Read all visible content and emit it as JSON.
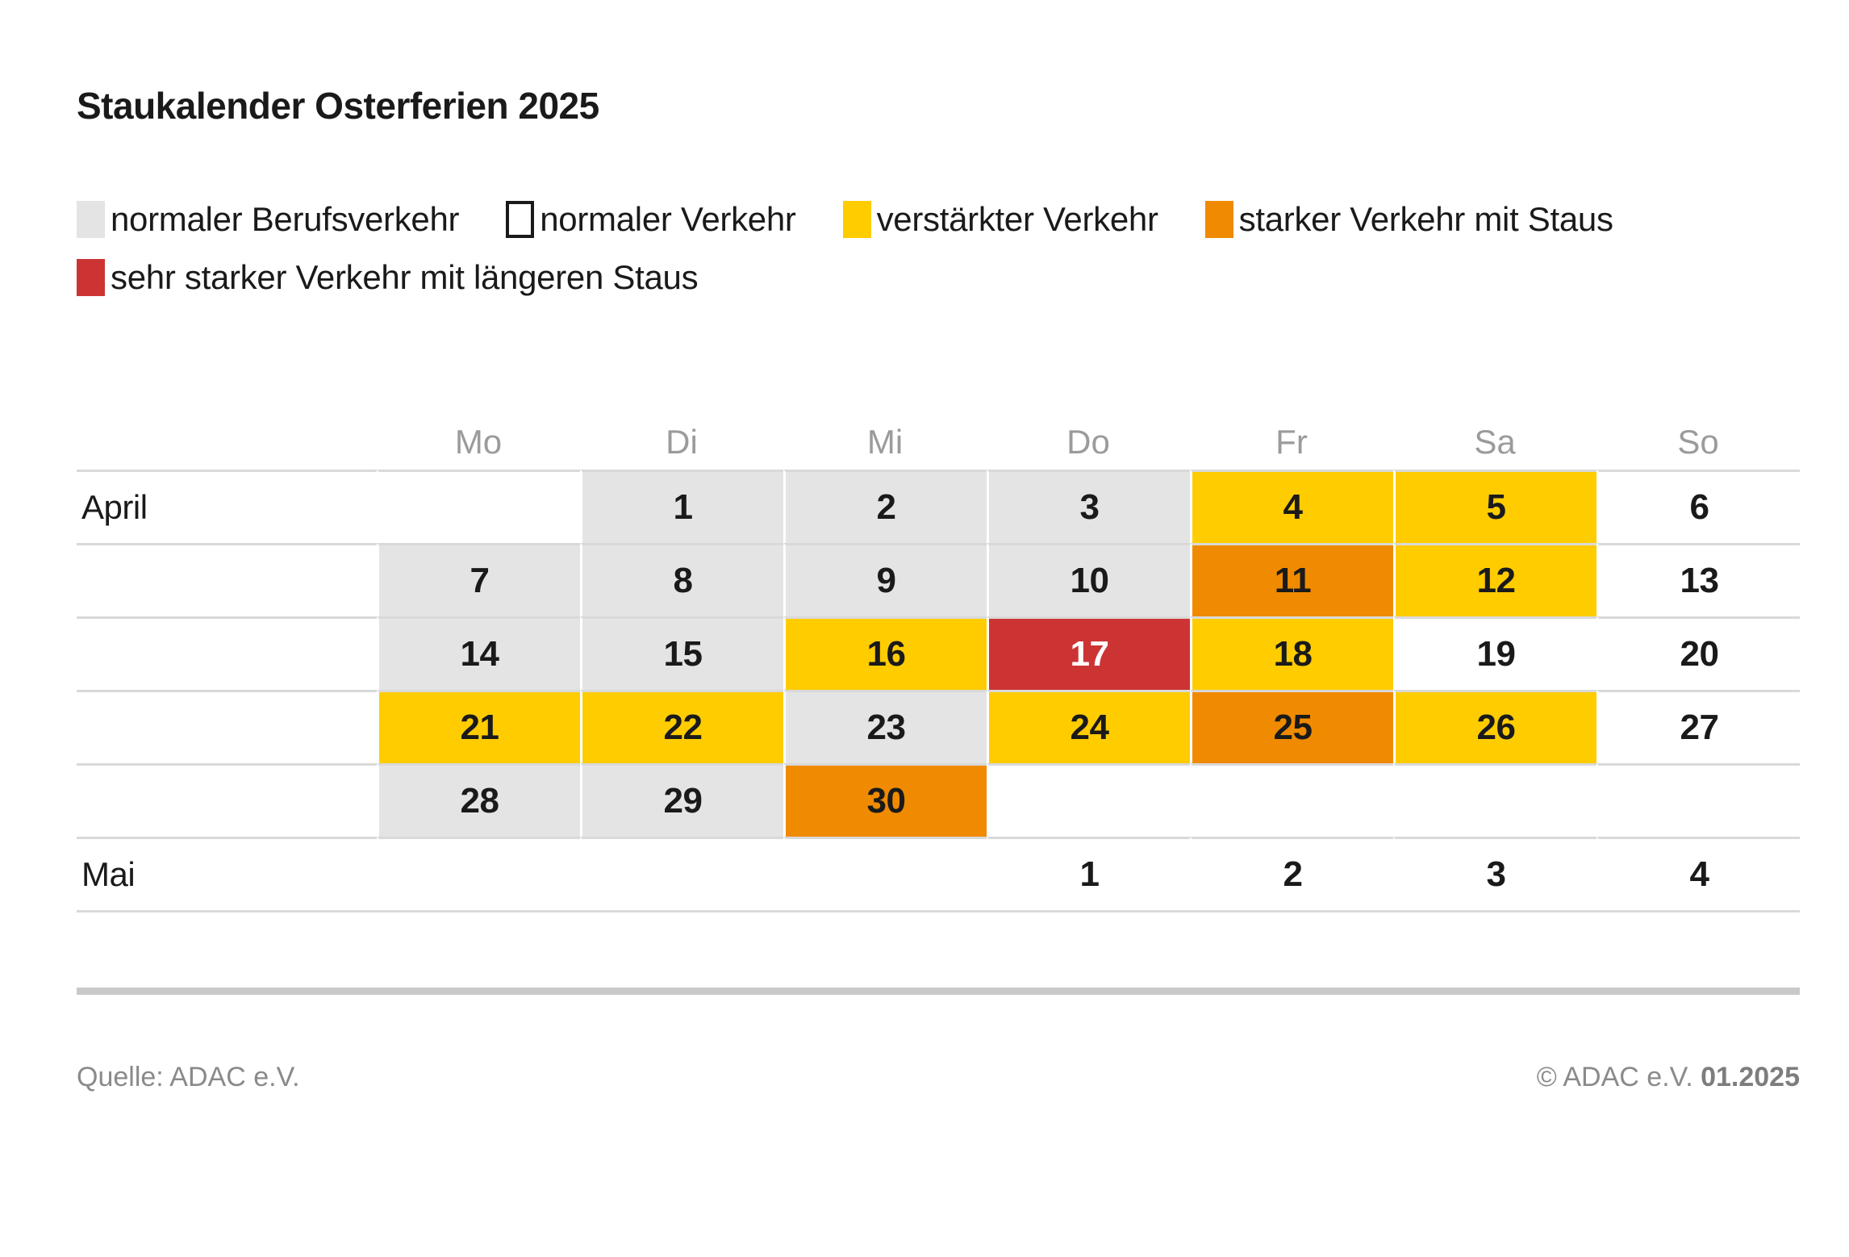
{
  "chart_data": {
    "type": "heatmap",
    "title": "Staukalender Osterferien 2025",
    "columns": [
      "Mo",
      "Di",
      "Mi",
      "Do",
      "Fr",
      "Sa",
      "So"
    ],
    "legend": [
      {
        "status": "gray",
        "label": "normaler Berufsverkehr"
      },
      {
        "status": "white",
        "label": "normaler Verkehr"
      },
      {
        "status": "yellow",
        "label": "verstärkter Verkehr"
      },
      {
        "status": "orange",
        "label": "starker Verkehr mit Staus"
      },
      {
        "status": "red",
        "label": "sehr starker Verkehr mit längeren Staus"
      }
    ],
    "status_legend": {
      "gray": "normaler Berufsverkehr",
      "white": "normaler Verkehr",
      "yellow": "verstärkter Verkehr",
      "orange": "starker Verkehr mit Staus",
      "red": "sehr starker Verkehr mit längeren Staus"
    },
    "colors": {
      "gray": "#e4e4e4",
      "white": "#ffffff",
      "yellow": "#ffcc00",
      "orange": "#f08a00",
      "red": "#cc3434",
      "row_line": "#d9d9d9",
      "divider": "#c9c9c9",
      "weekday_text": "#9b9b9b",
      "text": "#1a1a1a",
      "footer_text": "#8a8a8a"
    },
    "rows": [
      {
        "month": "April",
        "month_id": "april",
        "cells": [
          {
            "day": "",
            "status": "empty"
          },
          {
            "day": "1",
            "status": "gray"
          },
          {
            "day": "2",
            "status": "gray"
          },
          {
            "day": "3",
            "status": "gray"
          },
          {
            "day": "4",
            "status": "yellow"
          },
          {
            "day": "5",
            "status": "yellow"
          },
          {
            "day": "6",
            "status": "white"
          }
        ]
      },
      {
        "month": "",
        "month_id": "april",
        "cells": [
          {
            "day": "7",
            "status": "gray"
          },
          {
            "day": "8",
            "status": "gray"
          },
          {
            "day": "9",
            "status": "gray"
          },
          {
            "day": "10",
            "status": "gray"
          },
          {
            "day": "11",
            "status": "orange"
          },
          {
            "day": "12",
            "status": "yellow"
          },
          {
            "day": "13",
            "status": "white"
          }
        ]
      },
      {
        "month": "",
        "month_id": "april",
        "cells": [
          {
            "day": "14",
            "status": "gray"
          },
          {
            "day": "15",
            "status": "gray"
          },
          {
            "day": "16",
            "status": "yellow"
          },
          {
            "day": "17",
            "status": "red"
          },
          {
            "day": "18",
            "status": "yellow"
          },
          {
            "day": "19",
            "status": "white"
          },
          {
            "day": "20",
            "status": "white"
          }
        ]
      },
      {
        "month": "",
        "month_id": "april",
        "cells": [
          {
            "day": "21",
            "status": "yellow"
          },
          {
            "day": "22",
            "status": "yellow"
          },
          {
            "day": "23",
            "status": "gray"
          },
          {
            "day": "24",
            "status": "yellow"
          },
          {
            "day": "25",
            "status": "orange"
          },
          {
            "day": "26",
            "status": "yellow"
          },
          {
            "day": "27",
            "status": "white"
          }
        ]
      },
      {
        "month": "",
        "month_id": "april",
        "cells": [
          {
            "day": "28",
            "status": "gray"
          },
          {
            "day": "29",
            "status": "gray"
          },
          {
            "day": "30",
            "status": "orange"
          },
          {
            "day": "",
            "status": "empty"
          },
          {
            "day": "",
            "status": "empty"
          },
          {
            "day": "",
            "status": "empty"
          },
          {
            "day": "",
            "status": "empty"
          }
        ]
      },
      {
        "month": "Mai",
        "month_id": "mai",
        "cells": [
          {
            "day": "",
            "status": "empty"
          },
          {
            "day": "",
            "status": "empty"
          },
          {
            "day": "",
            "status": "empty"
          },
          {
            "day": "1",
            "status": "white"
          },
          {
            "day": "2",
            "status": "white"
          },
          {
            "day": "3",
            "status": "white"
          },
          {
            "day": "4",
            "status": "white"
          }
        ]
      }
    ]
  },
  "footer": {
    "source": "Quelle: ADAC e.V.",
    "copyright": "© ADAC e.V.",
    "date": "01.2025"
  }
}
